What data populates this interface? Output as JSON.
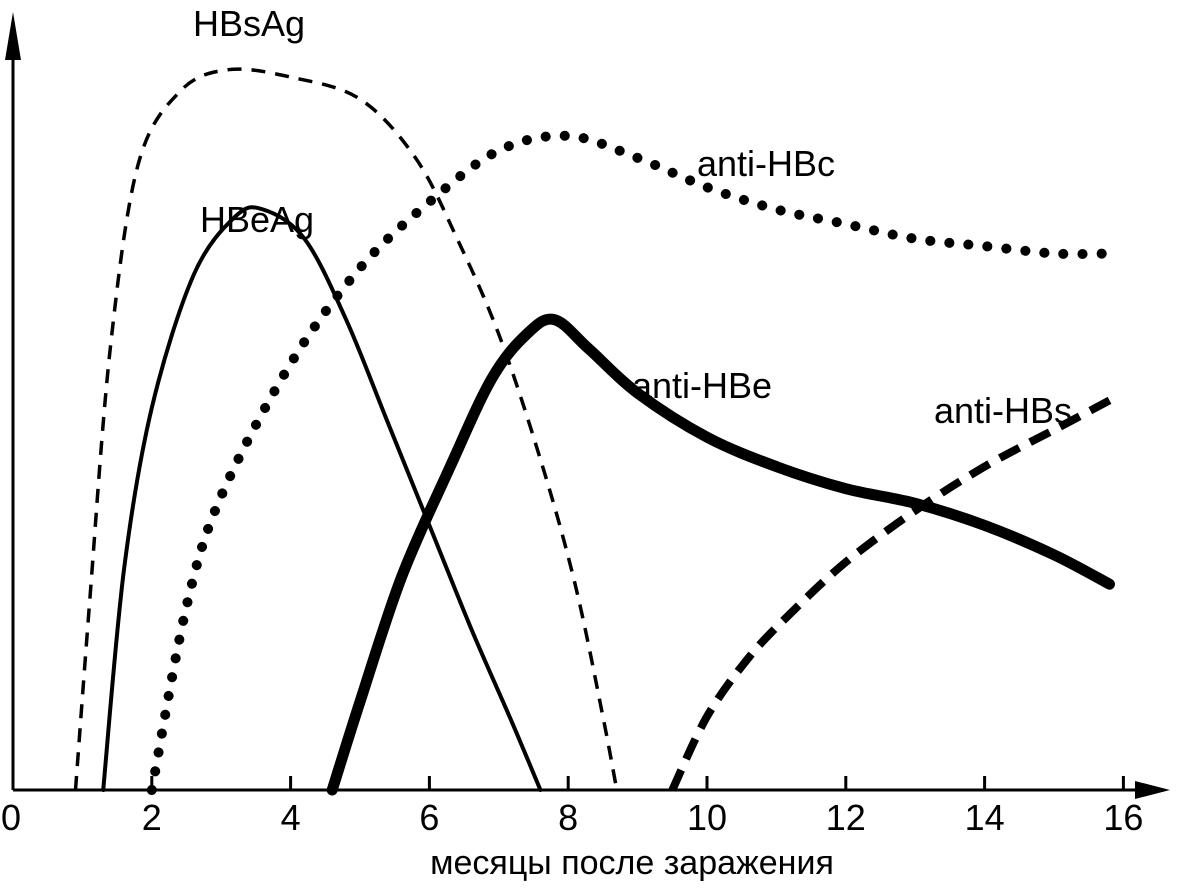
{
  "chart_data": {
    "type": "line",
    "title": "",
    "xlabel": "месяцы после заражения",
    "ylabel": "",
    "xlim": [
      0,
      16.5
    ],
    "ylim": [
      0,
      1.0
    ],
    "x_ticks": [
      0,
      2,
      4,
      6,
      8,
      10,
      12,
      14,
      16
    ],
    "x_tick_labels": [
      "0",
      "2",
      "4",
      "6",
      "8",
      "10",
      "12",
      "14",
      "16"
    ],
    "grid": false,
    "legend": "none (series labeled directly on curves)",
    "series": [
      {
        "name": "HBsAg",
        "style": "dashed",
        "points": [
          [
            0.9,
            0.0
          ],
          [
            1.1,
            0.25
          ],
          [
            1.4,
            0.6
          ],
          [
            1.8,
            0.85
          ],
          [
            2.4,
            0.95
          ],
          [
            3.1,
            0.98
          ],
          [
            4.0,
            0.97
          ],
          [
            5.0,
            0.94
          ],
          [
            5.8,
            0.86
          ],
          [
            6.4,
            0.75
          ],
          [
            7.0,
            0.62
          ],
          [
            7.6,
            0.45
          ],
          [
            8.1,
            0.28
          ],
          [
            8.5,
            0.1
          ],
          [
            8.7,
            0.0
          ]
        ]
      },
      {
        "name": "HBeAg",
        "style": "solid",
        "points": [
          [
            1.3,
            0.0
          ],
          [
            1.6,
            0.3
          ],
          [
            2.0,
            0.52
          ],
          [
            2.6,
            0.7
          ],
          [
            3.2,
            0.78
          ],
          [
            3.6,
            0.79
          ],
          [
            4.2,
            0.75
          ],
          [
            4.8,
            0.64
          ],
          [
            5.4,
            0.5
          ],
          [
            6.0,
            0.36
          ],
          [
            6.6,
            0.22
          ],
          [
            7.2,
            0.09
          ],
          [
            7.6,
            0.0
          ]
        ]
      },
      {
        "name": "anti-HBc",
        "style": "dotted",
        "points": [
          [
            2.0,
            0.0
          ],
          [
            2.5,
            0.25
          ],
          [
            3.0,
            0.4
          ],
          [
            4.0,
            0.58
          ],
          [
            5.0,
            0.71
          ],
          [
            6.0,
            0.8
          ],
          [
            7.0,
            0.87
          ],
          [
            8.0,
            0.89
          ],
          [
            9.0,
            0.86
          ],
          [
            10.0,
            0.82
          ],
          [
            11.0,
            0.79
          ],
          [
            12.0,
            0.77
          ],
          [
            13.0,
            0.75
          ],
          [
            14.0,
            0.74
          ],
          [
            15.0,
            0.73
          ],
          [
            15.8,
            0.73
          ]
        ]
      },
      {
        "name": "anti-HBe",
        "style": "thick-solid",
        "points": [
          [
            4.6,
            0.0
          ],
          [
            5.0,
            0.12
          ],
          [
            5.6,
            0.29
          ],
          [
            6.3,
            0.44
          ],
          [
            6.9,
            0.56
          ],
          [
            7.4,
            0.62
          ],
          [
            7.8,
            0.64
          ],
          [
            8.3,
            0.6
          ],
          [
            9.0,
            0.54
          ],
          [
            10.0,
            0.48
          ],
          [
            11.0,
            0.44
          ],
          [
            12.0,
            0.41
          ],
          [
            13.0,
            0.39
          ],
          [
            14.0,
            0.36
          ],
          [
            15.0,
            0.32
          ],
          [
            15.8,
            0.28
          ]
        ]
      },
      {
        "name": "anti-HBs",
        "style": "thick-dashed",
        "points": [
          [
            9.5,
            0.0
          ],
          [
            10.0,
            0.1
          ],
          [
            10.6,
            0.18
          ],
          [
            11.2,
            0.24
          ],
          [
            12.0,
            0.31
          ],
          [
            13.0,
            0.38
          ],
          [
            14.0,
            0.44
          ],
          [
            15.0,
            0.49
          ],
          [
            15.8,
            0.53
          ]
        ]
      }
    ]
  }
}
